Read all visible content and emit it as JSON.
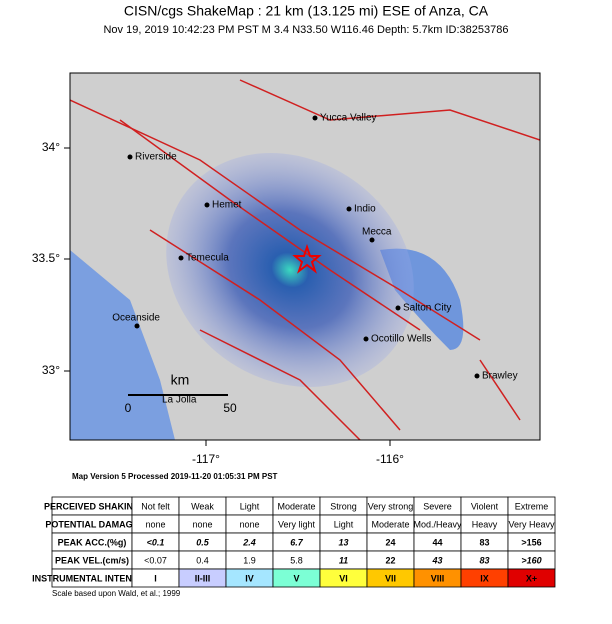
{
  "header": {
    "title": "CISN/cgs ShakeMap : 21 km (13.125 mi) ESE of Anza, CA",
    "subtitle": "Nov 19, 2019 10:42:23 PM PST   M 3.4   N33.50 W116.46   Depth: 5.7km   ID:38253786"
  },
  "map": {
    "cities": [
      "Yucca Valley",
      "Riverside",
      "Hemet",
      "Indio",
      "Mecca",
      "Temecula",
      "Salton City",
      "Oceanside",
      "Ocotillo Wells",
      "Brawley"
    ],
    "lat_labels": [
      "34°",
      "33.5°",
      "33°"
    ],
    "lon_labels": [
      "-117°",
      "-116°"
    ],
    "scale": {
      "unit": "km",
      "start": "0",
      "end": "50"
    },
    "place": "La Jolla"
  },
  "version": "Map Version 5 Processed 2019-11-20 01:05:31 PM PST",
  "table": {
    "rows": [
      [
        "PERCEIVED SHAKING",
        "Not felt",
        "Weak",
        "Light",
        "Moderate",
        "Strong",
        "Very strong",
        "Severe",
        "Violent",
        "Extreme"
      ],
      [
        "POTENTIAL DAMAGE",
        "none",
        "none",
        "none",
        "Very light",
        "Light",
        "Moderate",
        "Mod./Heavy",
        "Heavy",
        "Very Heavy"
      ],
      [
        "PEAK ACC.(%g)",
        "<0.1",
        "0.5",
        "2.4",
        "6.7",
        "13",
        "24",
        "44",
        "83",
        ">156"
      ],
      [
        "PEAK VEL.(cm/s)",
        "<0.07",
        "0.4",
        "1.9",
        "5.8",
        "11",
        "22",
        "43",
        "83",
        ">160"
      ],
      [
        "INSTRUMENTAL INTENSITY",
        "I",
        "II-III",
        "IV",
        "V",
        "VI",
        "VII",
        "VIII",
        "IX",
        "X+"
      ]
    ]
  },
  "footnote": "Scale based upon Wald, et al.; 1999"
}
